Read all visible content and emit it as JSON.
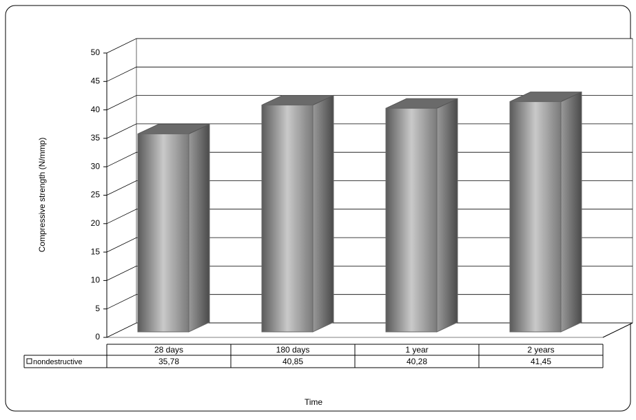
{
  "chart_data": {
    "type": "bar3d",
    "y_label": "Compressive strength (N/mmp)",
    "x_label": "Time",
    "categories": [
      "28 days",
      "180 days",
      "1 year",
      "2 years"
    ],
    "series": [
      {
        "name": "nondestructive",
        "color": "#8a8a8a",
        "values": [
          35.78,
          40.85,
          40.28,
          41.45
        ],
        "value_labels": [
          "35,78",
          "40,85",
          "40,28",
          "41,45"
        ]
      }
    ],
    "ylim": [
      0,
      50
    ],
    "yticks": [
      0,
      5,
      10,
      15,
      20,
      25,
      30,
      35,
      40,
      45,
      50
    ],
    "grid": true
  }
}
